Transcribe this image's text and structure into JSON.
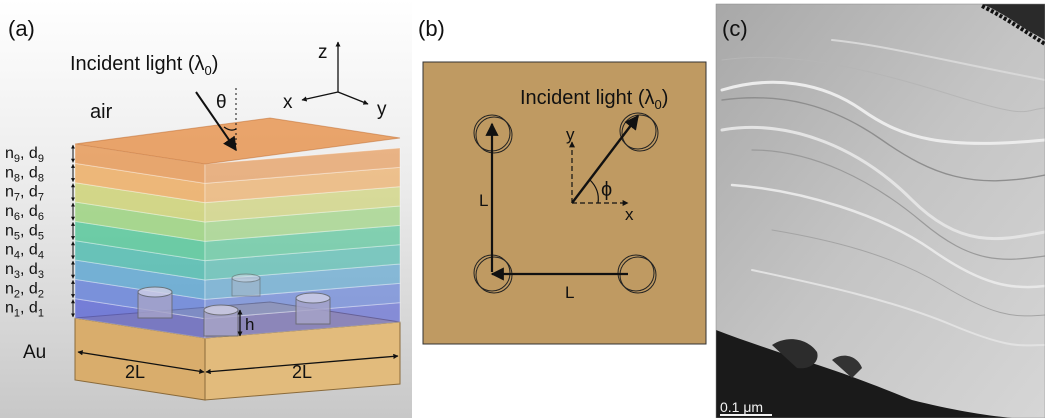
{
  "panel_a": {
    "label": "(a)",
    "incident": "Incident light (λ",
    "incident_sub": "0",
    "incident_close": ")",
    "air": "air",
    "theta": "θ",
    "axis_z": "z",
    "axis_x": "x",
    "axis_y": "y",
    "layers": [
      {
        "n": "n",
        "d": "d",
        "i": "9"
      },
      {
        "n": "n",
        "d": "d",
        "i": "8"
      },
      {
        "n": "n",
        "d": "d",
        "i": "7"
      },
      {
        "n": "n",
        "d": "d",
        "i": "6"
      },
      {
        "n": "n",
        "d": "d",
        "i": "5"
      },
      {
        "n": "n",
        "d": "d",
        "i": "4"
      },
      {
        "n": "n",
        "d": "d",
        "i": "3"
      },
      {
        "n": "n",
        "d": "d",
        "i": "2"
      },
      {
        "n": "n",
        "d": "d",
        "i": "1"
      }
    ],
    "layer_colors": [
      "#e58a3d",
      "#eda24c",
      "#c9cf62",
      "#8fd06e",
      "#3fc28d",
      "#39b6a8",
      "#4b9ed0",
      "#5474da",
      "#4e5ad6"
    ],
    "h": "h",
    "au": "Au",
    "dim_left": "2L",
    "dim_right": "2L"
  },
  "panel_b": {
    "label": "(b)",
    "incident": "Incident light (λ",
    "incident_sub": "0",
    "incident_close": ")",
    "axis_y": "y",
    "axis_x": "x",
    "phi": "ϕ",
    "L_vertical": "L",
    "L_horizontal": "L",
    "substrate_color": "#bf9a62"
  },
  "panel_c": {
    "label": "(c)",
    "scale": "0.1 μm"
  }
}
